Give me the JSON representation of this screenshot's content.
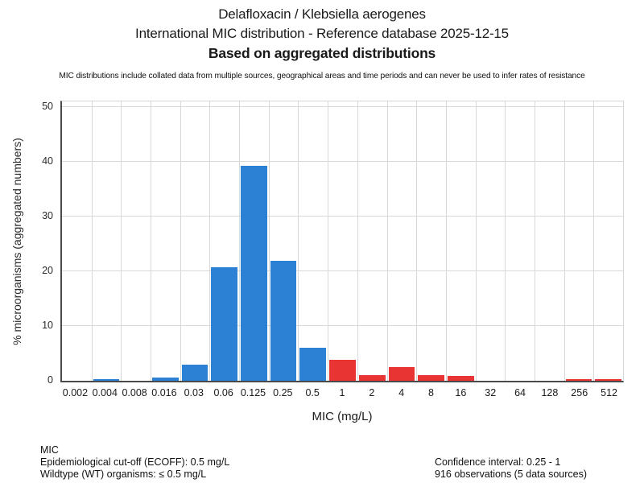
{
  "chart_data": {
    "type": "bar",
    "title": "Delafloxacin / Klebsiella aerogenes",
    "subtitle": "International MIC distribution - Reference database 2025-12-15",
    "subtitle2": "Based on aggregated distributions",
    "xlabel": "MIC (mg/L)",
    "ylabel": "% microorganisms (aggregated numbers)",
    "ylim": [
      0,
      51.1
    ],
    "yticks": [
      0,
      10,
      20,
      30,
      40,
      50
    ],
    "grid": true,
    "legend_position": "none",
    "categories": [
      "0.002",
      "0.004",
      "0.008",
      "0.016",
      "0.03",
      "0.06",
      "0.125",
      "0.25",
      "0.5",
      "1",
      "2",
      "4",
      "8",
      "16",
      "32",
      "64",
      "128",
      "256",
      "512"
    ],
    "values": [
      0,
      0.25,
      0,
      0.6,
      3.0,
      20.7,
      39.3,
      22.0,
      6.1,
      3.9,
      1.1,
      2.5,
      1.0,
      0.85,
      0,
      0,
      0,
      0.25,
      0.35
    ],
    "colors": [
      "#2D81D5",
      "#2D81D5",
      "#2D81D5",
      "#2D81D5",
      "#2D81D5",
      "#2D81D5",
      "#2D81D5",
      "#2D81D5",
      "#2D81D5",
      "#E93434",
      "#E93434",
      "#E93434",
      "#E93434",
      "#E93434",
      "#E93434",
      "#E93434",
      "#E93434",
      "#E93434",
      "#E93434"
    ],
    "wildtype_color": "#2D81D5",
    "non_wildtype_color": "#E93434"
  },
  "disclaimer": "MIC distributions include collated data from multiple sources, geographical areas and time periods and can never be used to infer rates of resistance",
  "footer": {
    "left": [
      "MIC",
      "Epidemiological cut-off (ECOFF): 0.5 mg/L",
      "Wildtype (WT) organisms: ≤ 0.5 mg/L"
    ],
    "right": [
      "Confidence interval: 0.25 - 1",
      "916 observations (5 data sources)"
    ]
  }
}
